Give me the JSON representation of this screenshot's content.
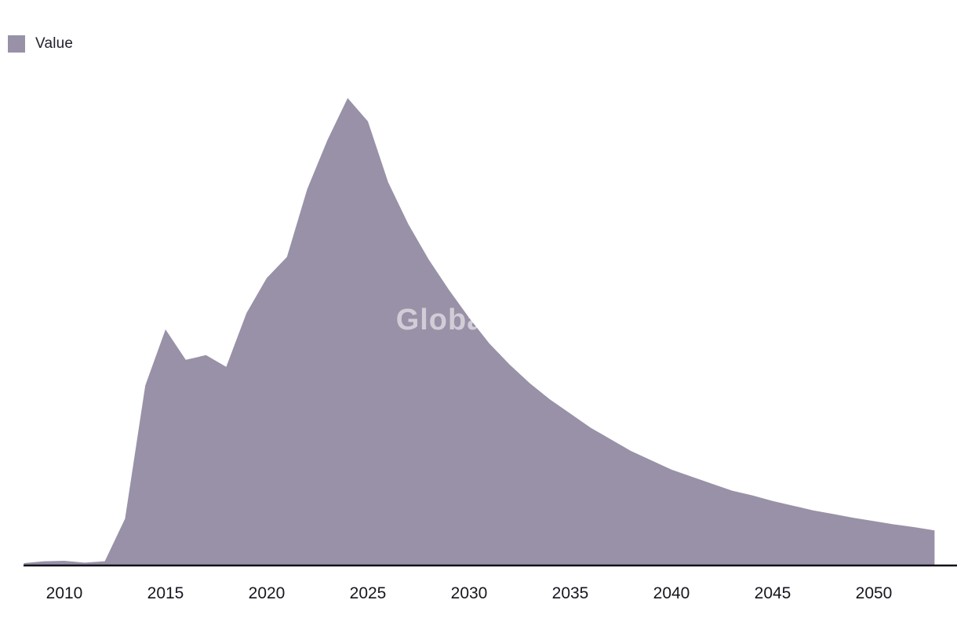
{
  "legend": {
    "label": "Value"
  },
  "watermark": "GlobalData",
  "colors": {
    "area_fill": "#9991a7",
    "legend_swatch": "#9991a7",
    "axis_line": "#101018",
    "tick_label": "#16161f",
    "watermark": "rgba(255,255,255,0.55)"
  },
  "chart_data": {
    "type": "area",
    "title": "",
    "xlabel": "",
    "ylabel": "",
    "grid": false,
    "legend_position": "top-left",
    "y_axis_visible": false,
    "x_ticks": [
      2010,
      2015,
      2020,
      2025,
      2030,
      2035,
      2040,
      2045,
      2050
    ],
    "x": [
      2008,
      2009,
      2010,
      2011,
      2012,
      2013,
      2014,
      2015,
      2016,
      2017,
      2018,
      2019,
      2020,
      2021,
      2022,
      2023,
      2024,
      2025,
      2026,
      2027,
      2028,
      2029,
      2030,
      2031,
      2032,
      2033,
      2034,
      2035,
      2036,
      2037,
      2038,
      2039,
      2040,
      2041,
      2042,
      2043,
      2044,
      2045,
      2046,
      2047,
      2048,
      2049,
      2050,
      2051,
      2052,
      2053
    ],
    "ylim": [
      0,
      105
    ],
    "series": [
      {
        "name": "Value",
        "values": [
          0.5,
          0.9,
          1.0,
          0.6,
          0.9,
          10,
          38.5,
          50.5,
          44,
          45,
          42.5,
          54,
          61.5,
          66,
          80.5,
          91,
          100,
          95,
          82,
          73,
          65.5,
          59,
          53,
          47.5,
          43,
          39,
          35.5,
          32.5,
          29.5,
          27,
          24.5,
          22.5,
          20.5,
          19,
          17.5,
          16,
          15,
          13.8,
          12.8,
          11.8,
          11,
          10.2,
          9.5,
          8.8,
          8.2,
          7.5
        ]
      }
    ]
  }
}
